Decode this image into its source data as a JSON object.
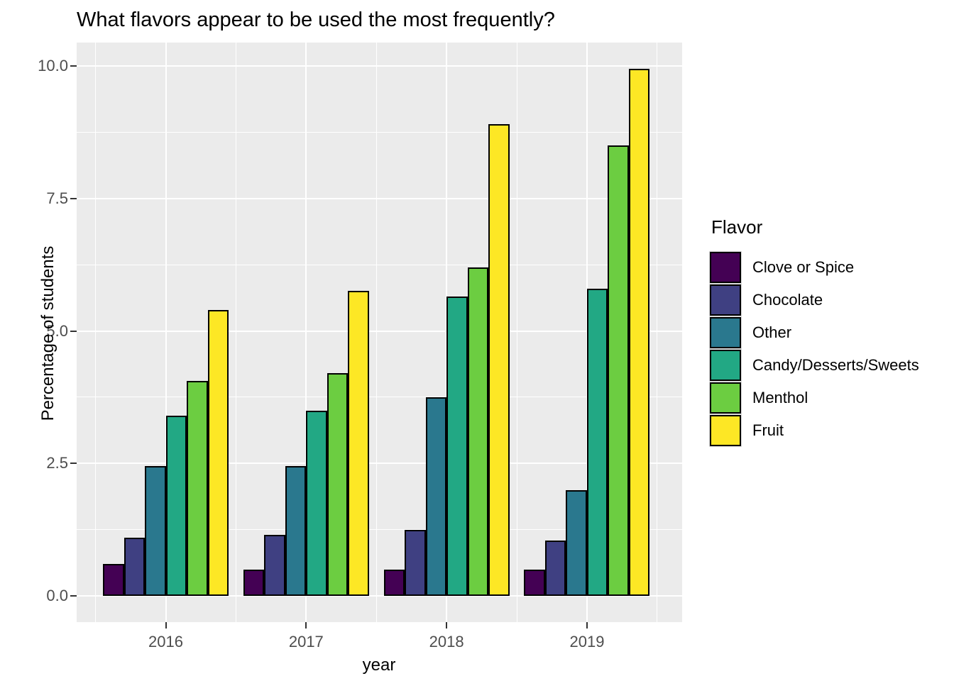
{
  "figure": {
    "title": "What flavors appear to be used the most frequently?"
  },
  "chart_data": {
    "type": "bar",
    "title": "What flavors appear to be used the most frequently?",
    "xlabel": "year",
    "ylabel": "Percentage of students",
    "categories": [
      "2016",
      "2017",
      "2018",
      "2019"
    ],
    "series": [
      {
        "name": "Clove or Spice",
        "color": "#440154",
        "values": [
          0.6,
          0.5,
          0.5,
          0.5
        ]
      },
      {
        "name": "Chocolate",
        "color": "#3f4082",
        "values": [
          1.1,
          1.15,
          1.25,
          1.05
        ]
      },
      {
        "name": "Other",
        "color": "#2a788e",
        "values": [
          2.45,
          2.45,
          3.75,
          2.0
        ]
      },
      {
        "name": "Candy/Desserts/Sweets",
        "color": "#22a884",
        "values": [
          3.4,
          3.5,
          5.65,
          5.8
        ]
      },
      {
        "name": "Menthol",
        "color": "#6ccd41",
        "values": [
          4.05,
          4.2,
          6.2,
          8.5
        ]
      },
      {
        "name": "Fruit",
        "color": "#fde725",
        "values": [
          5.4,
          5.75,
          8.9,
          9.95
        ]
      }
    ],
    "ylim": [
      0,
      10.0
    ],
    "yticks": [
      0.0,
      2.5,
      5.0,
      7.5,
      10.0
    ],
    "ytick_labels": [
      "0.0",
      "2.5",
      "5.0",
      "7.5",
      "10.0"
    ],
    "yticks_minor": [
      1.25,
      3.75,
      6.25,
      8.75
    ],
    "legend_title": "Flavor",
    "legend_position": "right",
    "grid": true,
    "style": {
      "panel_bg": "#ebebeb",
      "gridline_color": "#ffffff",
      "bar_outline": "#000000",
      "axis_text_color": "#4d4d4d",
      "tick_color": "#333333"
    }
  }
}
